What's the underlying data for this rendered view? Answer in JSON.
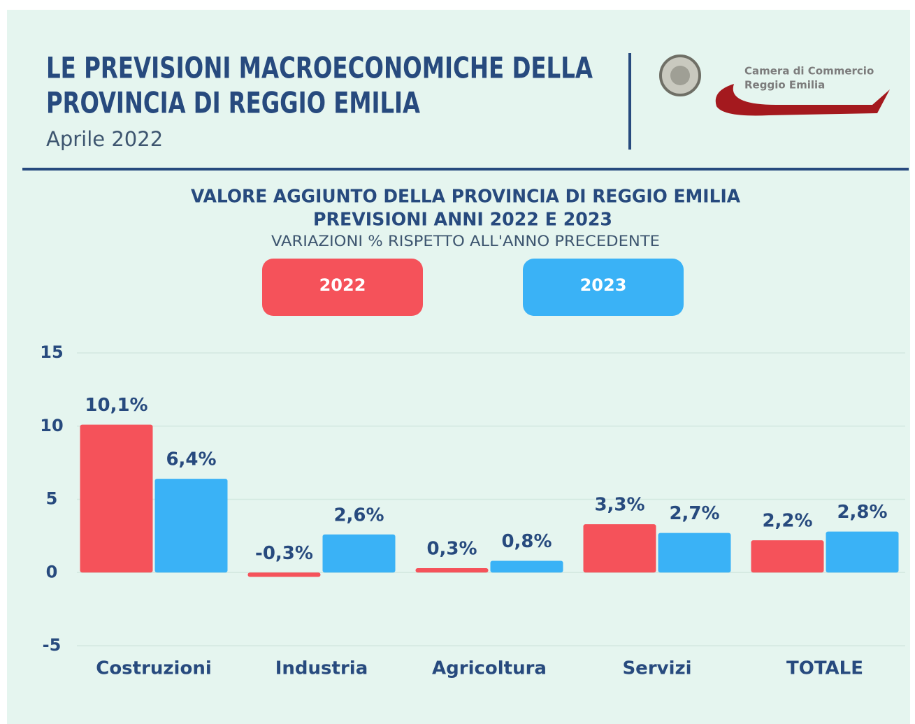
{
  "header": {
    "title": [
      "LE PREVISIONI MACROECONOMICHE DELLA",
      "PROVINCIA DI REGGIO EMILIA"
    ],
    "date": "Aprile 2022",
    "logo": [
      "Camera di Commercio",
      "Reggio Emilia"
    ]
  },
  "chart_data": {
    "type": "bar",
    "title": "VALORE AGGIUNTO DELLA PROVINCIA DI REGGIO EMILIA",
    "subtitle": "PREVISIONI ANNI 2022 E 2023",
    "note": "VARIAZIONI % RISPETTO ALL'ANNO PRECEDENTE",
    "categories": [
      "Costruzioni",
      "Industria",
      "Agricoltura",
      "Servizi",
      "TOTALE"
    ],
    "series": [
      {
        "name": "2022",
        "color": "#f5525a",
        "values": [
          10.1,
          -0.3,
          0.3,
          3.3,
          2.2
        ],
        "value_labels": [
          "10,1%",
          "-0,3%",
          "0,3%",
          "3,3%",
          "2,2%"
        ]
      },
      {
        "name": "2023",
        "color": "#3ab2f6",
        "values": [
          6.4,
          2.6,
          0.8,
          2.7,
          2.8
        ],
        "value_labels": [
          "6,4%",
          "2,6%",
          "0,8%",
          "2,7%",
          "2,8%"
        ]
      }
    ],
    "ylim": [
      -5,
      15
    ],
    "yticks": [
      -5,
      0,
      5,
      10,
      15
    ],
    "grid": true
  }
}
